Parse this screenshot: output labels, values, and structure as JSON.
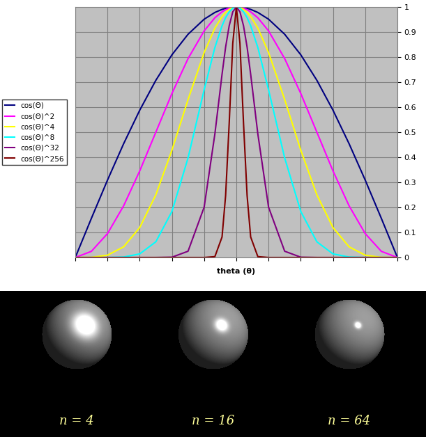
{
  "chart_data": {
    "type": "line",
    "x_label": "theta (θ)",
    "x": [
      -90,
      -81,
      -72,
      -63,
      -54,
      -45,
      -36,
      -27,
      -18,
      -12,
      -8,
      -6,
      -4,
      -2,
      0,
      2,
      4,
      6,
      8,
      12,
      18,
      27,
      36,
      45,
      54,
      63,
      72,
      81,
      90
    ],
    "xlim": [
      -90,
      90
    ],
    "xticks": [
      -90,
      -72,
      -54,
      -36,
      -18,
      0,
      18,
      36,
      54,
      72,
      90
    ],
    "ylim": [
      0,
      1
    ],
    "yticks": [
      0,
      0.1,
      0.2,
      0.3,
      0.4,
      0.5,
      0.6,
      0.7,
      0.8,
      0.9,
      1
    ],
    "grid": true,
    "legend": "left",
    "tick_labels": "y",
    "series": [
      {
        "name": "cos(Θ)",
        "color": "#000080",
        "values": [
          0,
          0.1564,
          0.309,
          0.454,
          0.5878,
          0.7071,
          0.809,
          0.891,
          0.9511,
          0.9781,
          0.9903,
          0.9945,
          0.9976,
          0.9994,
          1,
          0.9994,
          0.9976,
          0.9945,
          0.9903,
          0.9781,
          0.9511,
          0.891,
          0.809,
          0.7071,
          0.5878,
          0.454,
          0.309,
          0.1564,
          0
        ]
      },
      {
        "name": "cos(Θ)^2",
        "color": "#ff00ff",
        "values": [
          0,
          0.0245,
          0.0955,
          0.2061,
          0.3455,
          0.5,
          0.6545,
          0.7939,
          0.9045,
          0.9568,
          0.9806,
          0.9891,
          0.9951,
          0.9988,
          1,
          0.9988,
          0.9951,
          0.9891,
          0.9806,
          0.9568,
          0.9045,
          0.7939,
          0.6545,
          0.5,
          0.3455,
          0.2061,
          0.0955,
          0.0245,
          0
        ]
      },
      {
        "name": "cos(Θ)^4",
        "color": "#ffff00",
        "values": [
          0,
          0.0006,
          0.0091,
          0.0425,
          0.1194,
          0.25,
          0.4284,
          0.6303,
          0.8181,
          0.9155,
          0.9616,
          0.9784,
          0.9903,
          0.9976,
          1,
          0.9976,
          0.9903,
          0.9784,
          0.9616,
          0.9155,
          0.8181,
          0.6303,
          0.4284,
          0.25,
          0.1194,
          0.0425,
          0.0091,
          0.0006,
          0
        ]
      },
      {
        "name": "cos(Θ)^8",
        "color": "#00ffff",
        "values": [
          0,
          0,
          0.0001,
          0.0018,
          0.0143,
          0.0625,
          0.1835,
          0.3973,
          0.6693,
          0.8381,
          0.9247,
          0.9573,
          0.9807,
          0.9951,
          1,
          0.9951,
          0.9807,
          0.9573,
          0.9247,
          0.8381,
          0.6693,
          0.3973,
          0.1835,
          0.0625,
          0.0143,
          0.0018,
          0.0001,
          0,
          0
        ]
      },
      {
        "name": "cos(Θ)^32",
        "color": "#800080",
        "values": [
          0,
          0,
          0,
          0,
          0,
          0,
          0.0011,
          0.0249,
          0.2007,
          0.4934,
          0.7312,
          0.8398,
          0.925,
          0.9806,
          1,
          0.9806,
          0.925,
          0.8398,
          0.7312,
          0.4934,
          0.2007,
          0.0249,
          0.0011,
          0,
          0,
          0,
          0,
          0,
          0
        ]
      },
      {
        "name": "cos(Θ)^256",
        "color": "#800000",
        "values": [
          0,
          0,
          0,
          0,
          0,
          0,
          0,
          0,
          0,
          0.0035,
          0.0817,
          0.2474,
          0.5359,
          0.8551,
          1,
          0.8551,
          0.5359,
          0.2474,
          0.0817,
          0.0035,
          0,
          0,
          0,
          0,
          0,
          0,
          0,
          0,
          0
        ]
      }
    ]
  },
  "image": {
    "spheres": [
      {
        "label": "n = 4",
        "n": 4
      },
      {
        "label": "n = 16",
        "n": 16
      },
      {
        "label": "n = 64",
        "n": 64
      }
    ]
  }
}
